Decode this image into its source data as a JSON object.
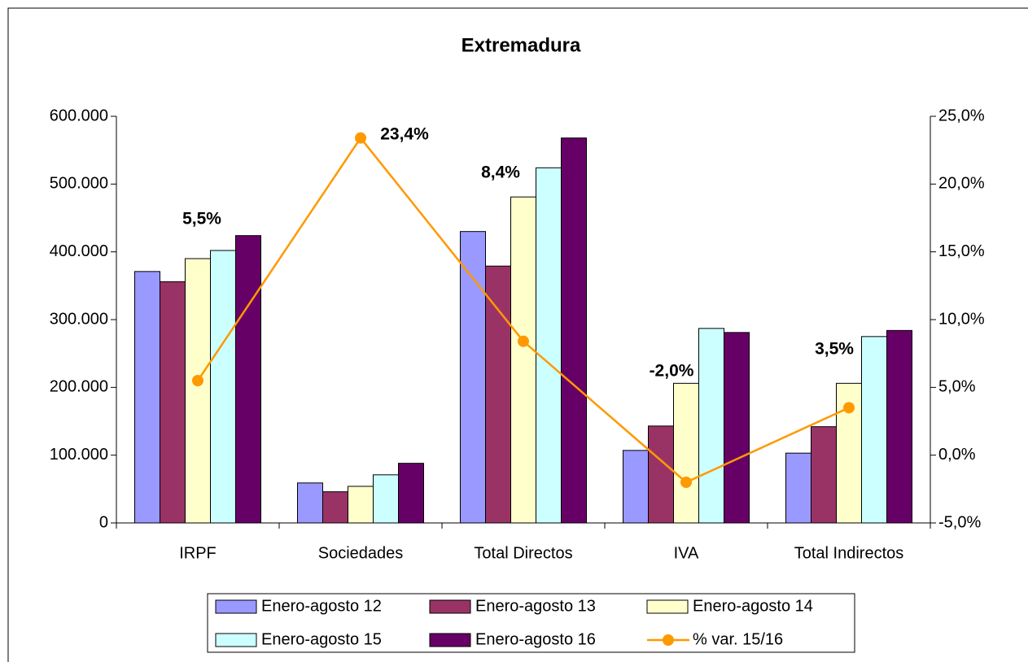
{
  "chart_data": {
    "type": "bar",
    "title": "Extremadura",
    "categories": [
      "IRPF",
      "Sociedades",
      "Total Directos",
      "IVA",
      "Total Indirectos"
    ],
    "series": [
      {
        "name": "Enero-agosto 12",
        "color": "#9999ff",
        "values": [
          371000,
          59000,
          430000,
          107000,
          103000
        ]
      },
      {
        "name": "Enero-agosto 13",
        "color": "#993366",
        "values": [
          356000,
          46000,
          379000,
          143000,
          142000
        ]
      },
      {
        "name": "Enero-agosto 14",
        "color": "#ffffcc",
        "values": [
          390000,
          54000,
          481000,
          206000,
          206000
        ]
      },
      {
        "name": "Enero-agosto 15",
        "color": "#ccffff",
        "values": [
          402000,
          71000,
          524000,
          287000,
          275000
        ]
      },
      {
        "name": "Enero-agosto 16",
        "color": "#660066",
        "values": [
          424000,
          88000,
          568000,
          281000,
          284000
        ]
      },
      {
        "name": "% var. 15/16",
        "color": "#ff9900",
        "type": "line",
        "axis": "y2",
        "values": [
          5.5,
          23.4,
          8.4,
          -2.0,
          3.5
        ],
        "value_labels": [
          "5,5%",
          "23,4%",
          "8,4%",
          "-2,0%",
          "3,5%"
        ]
      }
    ],
    "ylim": [
      0,
      600000
    ],
    "yticks": [
      0,
      {
        "value": 100000,
        "label": "100.000"
      },
      {
        "value": 200000,
        "label": "200.000"
      },
      {
        "value": 300000,
        "label": "300.000"
      },
      {
        "value": 400000,
        "label": "400.000"
      },
      {
        "value": 500000,
        "label": "500.000"
      },
      {
        "value": 600000,
        "label": "600.000"
      }
    ],
    "y2lim": [
      -5,
      25
    ],
    "y2ticks": [
      {
        "value": -5,
        "label": "-5,0%"
      },
      {
        "value": 0,
        "label": "0,0%"
      },
      {
        "value": 5,
        "label": "5,0%"
      },
      {
        "value": 10,
        "label": "10,0%"
      },
      {
        "value": 15,
        "label": "15,0%"
      },
      {
        "value": 20,
        "label": "20,0%"
      },
      {
        "value": 25,
        "label": "25,0%"
      }
    ],
    "legend": "bottom"
  }
}
